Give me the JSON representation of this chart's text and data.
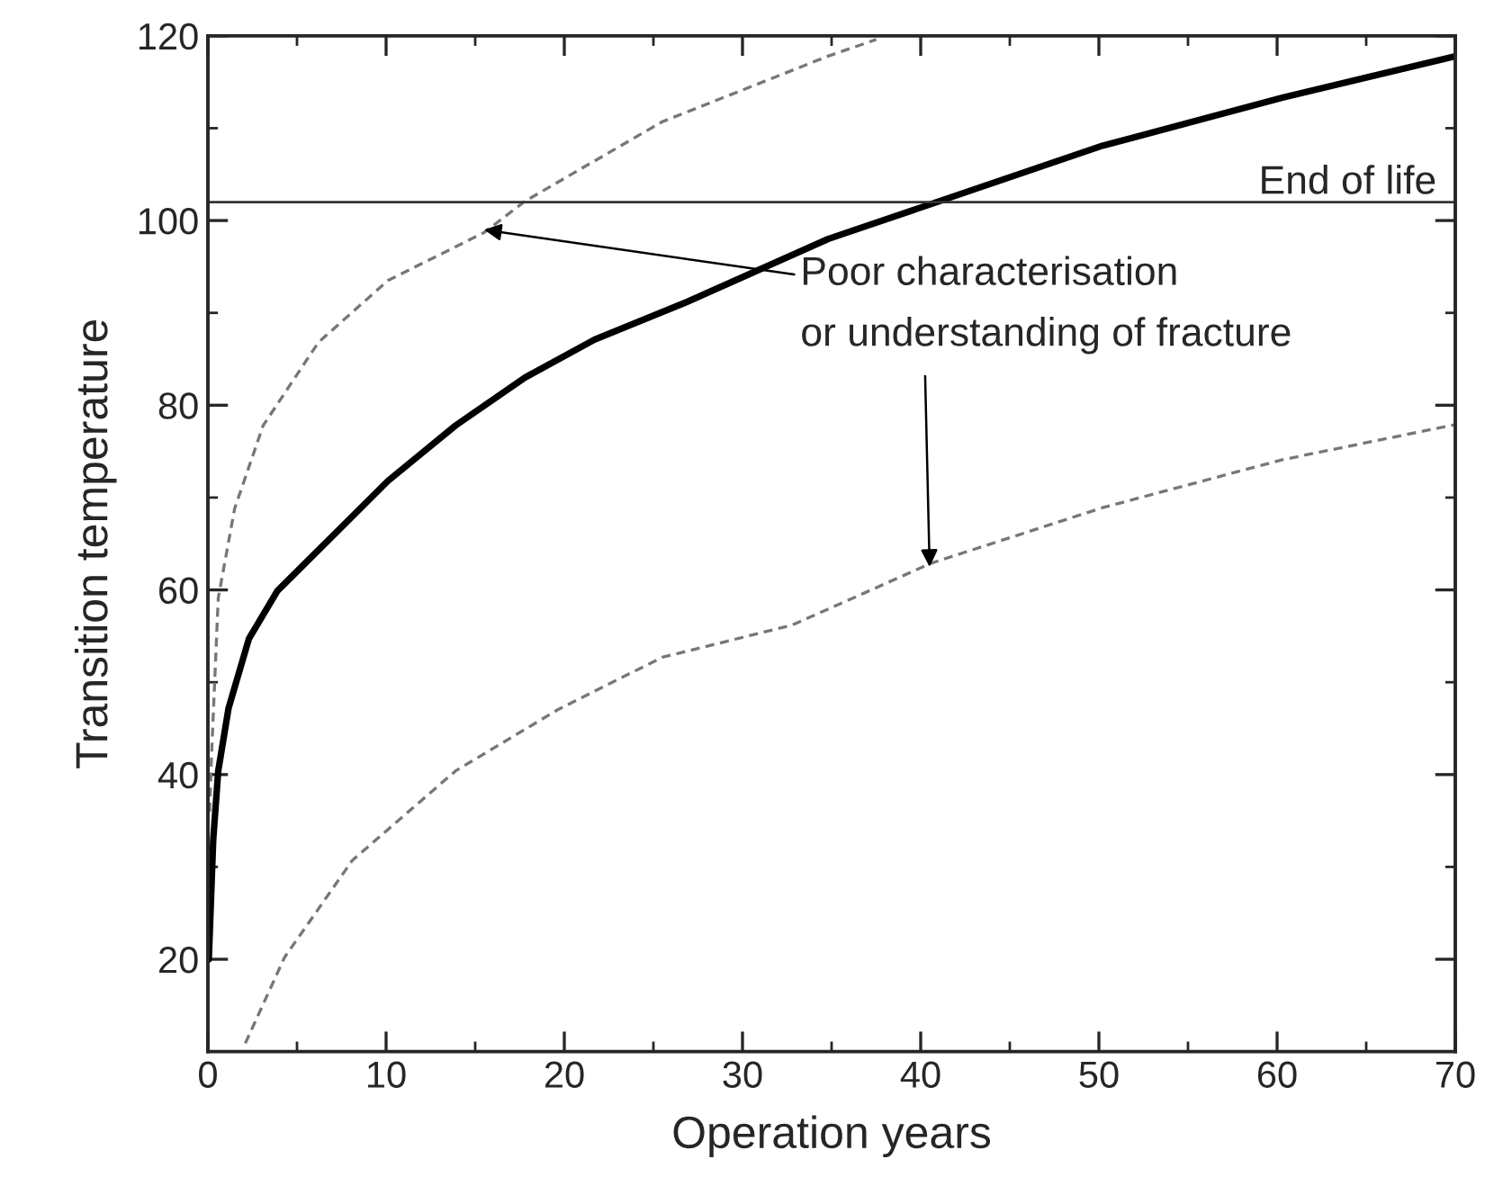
{
  "chart_data": {
    "type": "line",
    "xlabel": "Operation years",
    "ylabel": "Transition temperature",
    "xlim": [
      0,
      70
    ],
    "ylim": [
      10,
      120
    ],
    "xticks": [
      0,
      10,
      20,
      30,
      40,
      50,
      60,
      70
    ],
    "yticks": [
      20,
      40,
      60,
      80,
      100,
      120
    ],
    "grid": false,
    "series": [
      {
        "color": "#000000",
        "line_style": "solid",
        "x": [
          0.05,
          0.3,
          0.58,
          1.16,
          2.3,
          3.9,
          6.2,
          10.1,
          13.9,
          17.8,
          21.7,
          26.9,
          34.8,
          40.6,
          50.2,
          60.3,
          70
        ],
        "values": [
          20,
          33,
          40.4,
          47.2,
          54.7,
          59.9,
          64.3,
          71.8,
          77.8,
          83.0,
          87.1,
          91.2,
          98.0,
          101.8,
          108.1,
          113.3,
          117.8
        ]
      },
      {
        "color": "#777777",
        "line_style": "dashed",
        "x": [
          0.1,
          0.2,
          0.58,
          1.5,
          3.1,
          6.2,
          10.1,
          15.5,
          17.8,
          25.5,
          34.8,
          37.5
        ],
        "values": [
          36,
          41.9,
          59.1,
          68.8,
          77.8,
          86.8,
          93.5,
          98.7,
          102.1,
          110.7,
          117.8,
          119.6
        ]
      },
      {
        "color": "#777777",
        "line_style": "dashed",
        "x": [
          2.1,
          4.3,
          8.1,
          13.9,
          19.7,
          25.5,
          32.8,
          40.6,
          50.2,
          60.3,
          70
        ],
        "values": [
          10.9,
          20.2,
          30.7,
          40.4,
          47.1,
          52.7,
          56.2,
          62.9,
          68.9,
          74.1,
          77.9
        ]
      }
    ],
    "ref_lines": [
      {
        "axis": "y",
        "value": 102,
        "label": "End of life",
        "color": "#333333"
      }
    ],
    "annotations": [
      {
        "text": "Poor characterisation",
        "x": 15.5,
        "y": 99
      },
      {
        "text": "or understanding of fracture",
        "x": 40.5,
        "y": 62.5
      }
    ]
  }
}
